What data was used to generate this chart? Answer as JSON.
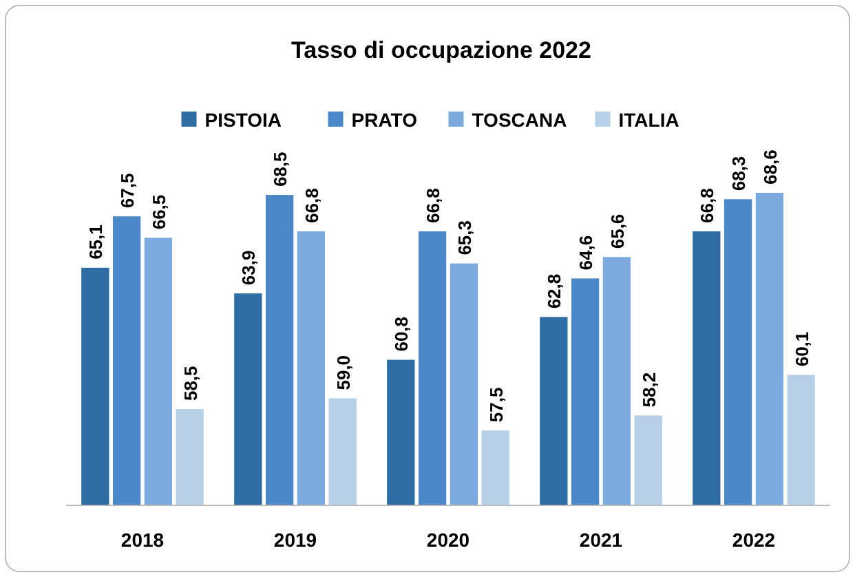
{
  "chart_data": {
    "type": "bar",
    "title": "Tasso di occupazione 2022",
    "categories": [
      "2018",
      "2019",
      "2020",
      "2021",
      "2022"
    ],
    "series": [
      {
        "name": "PISTOIA",
        "color": "#2e6ca4",
        "values": [
          65.1,
          63.9,
          60.8,
          62.8,
          66.8
        ],
        "value_labels": [
          "65,1",
          "63,9",
          "60,8",
          "62,8",
          "66,8"
        ]
      },
      {
        "name": "PRATO",
        "color": "#4a88c8",
        "values": [
          67.5,
          68.5,
          66.8,
          64.6,
          68.3
        ],
        "value_labels": [
          "67,5",
          "68,5",
          "66,8",
          "64,6",
          "68,3"
        ]
      },
      {
        "name": "TOSCANA",
        "color": "#7aaade",
        "values": [
          66.5,
          66.8,
          65.3,
          65.6,
          68.6
        ],
        "value_labels": [
          "66,5",
          "66,8",
          "65,3",
          "65,6",
          "68,6"
        ]
      },
      {
        "name": "ITALIA",
        "color": "#b8cfe8",
        "values": [
          58.5,
          59.0,
          57.5,
          58.2,
          60.1
        ],
        "value_labels": [
          "58,5",
          "59,0",
          "57,5",
          "58,2",
          "60,1"
        ]
      }
    ],
    "ylim": [
      54,
      68.6
    ],
    "legend": "top",
    "tick_labels": "x"
  }
}
